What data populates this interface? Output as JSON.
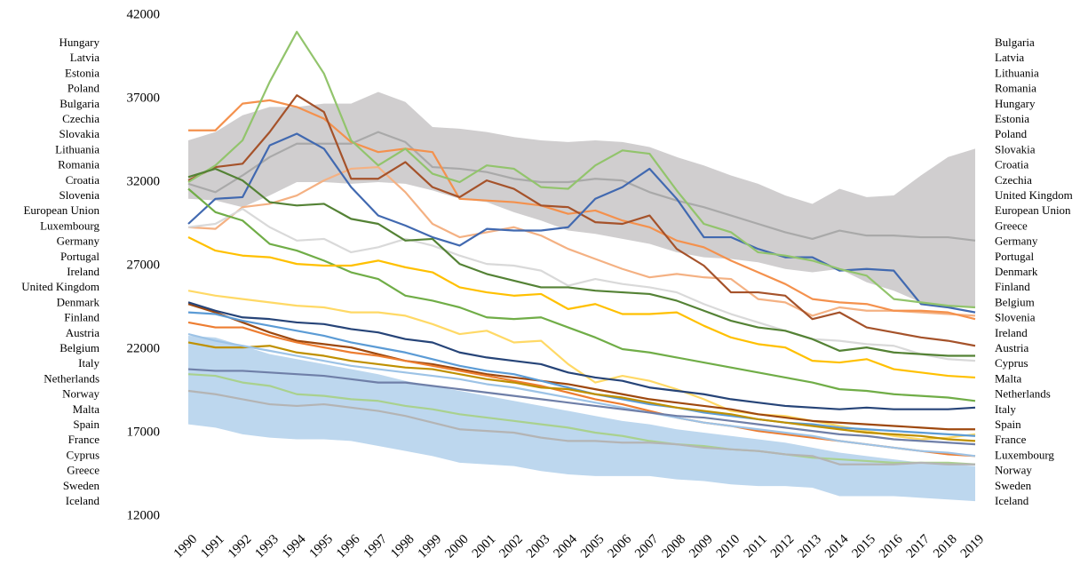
{
  "chart_data": {
    "type": "line",
    "categories": [
      "1990",
      "1991",
      "1992",
      "1993",
      "1994",
      "1995",
      "1996",
      "1997",
      "1998",
      "1999",
      "2000",
      "2001",
      "2002",
      "2003",
      "2004",
      "2005",
      "2006",
      "2007",
      "2008",
      "2009",
      "2010",
      "2011",
      "2012",
      "2013",
      "2014",
      "2015",
      "2016",
      "2017",
      "2018",
      "2019"
    ],
    "ylim": [
      12000,
      42000
    ],
    "yticks": [
      12000,
      17000,
      22000,
      27000,
      32000,
      37000,
      42000
    ],
    "grid": false,
    "left_labels": [
      "Hungary",
      "Latvia",
      "Estonia",
      "Poland",
      "Bulgaria",
      "Czechia",
      "Slovakia",
      "Lithuania",
      "Romania",
      "Croatia",
      "Slovenia",
      "European Union",
      "Luxembourg",
      "Germany",
      "Portugal",
      "Ireland",
      "United Kingdom",
      "Denmark",
      "Finland",
      "Austria",
      "Belgium",
      "Italy",
      "Netherlands",
      "Norway",
      "Malta",
      "Spain",
      "France",
      "Cyprus",
      "Greece",
      "Sweden",
      "Iceland"
    ],
    "right_labels": [
      "Bulgaria",
      "Latvia",
      "Lithuania",
      "Romania",
      "Hungary",
      "Estonia",
      "Poland",
      "Slovakia",
      "Croatia",
      "Czechia",
      "United Kingdom",
      "European Union",
      "Greece",
      "Germany",
      "Portugal",
      "Denmark",
      "Finland",
      "Belgium",
      "Slovenia",
      "Ireland",
      "Austria",
      "Cyprus",
      "Malta",
      "Netherlands",
      "Italy",
      "Spain",
      "France",
      "Luxembourg",
      "Norway",
      "Sweden",
      "Iceland"
    ],
    "bands": [
      {
        "color": "#d0cecf",
        "upper": [
          34500,
          35000,
          36000,
          36500,
          36500,
          36700,
          36700,
          37400,
          36800,
          35300,
          35200,
          35000,
          34700,
          34500,
          34400,
          34500,
          34400,
          34100,
          33500,
          33000,
          32400,
          31900,
          31200,
          30700,
          31600,
          31100,
          31200,
          32400,
          33500,
          34000
        ],
        "lower": [
          31000,
          30900,
          30500,
          31200,
          32000,
          32000,
          31900,
          32000,
          31900,
          31500,
          31000,
          30800,
          30200,
          29700,
          29100,
          28900,
          28600,
          28300,
          27800,
          27500,
          27400,
          27200,
          26800,
          26600,
          26800,
          26000,
          25500,
          24800,
          24500,
          24500
        ]
      },
      {
        "color": "#bdd7ee",
        "upper": [
          22800,
          22700,
          22200,
          21700,
          21400,
          21100,
          20800,
          20500,
          20100,
          19800,
          19500,
          19200,
          18900,
          18600,
          18300,
          18000,
          17700,
          17500,
          17200,
          17000,
          16800,
          16600,
          16400,
          16100,
          15800,
          15600,
          15400,
          15200,
          15100,
          15000
        ],
        "lower": [
          17500,
          17300,
          16900,
          16700,
          16600,
          16600,
          16500,
          16200,
          15900,
          15600,
          15200,
          15100,
          15000,
          14700,
          14500,
          14400,
          14400,
          14400,
          14200,
          14100,
          13900,
          13800,
          13800,
          13700,
          13200,
          13200,
          13200,
          13100,
          13000,
          12900
        ]
      }
    ],
    "series": [
      {
        "color": "#a9a9a9",
        "values": [
          31900,
          31400,
          32400,
          33500,
          34300,
          34300,
          34300,
          35000,
          34400,
          32900,
          32800,
          32600,
          32200,
          32000,
          32000,
          32200,
          32100,
          31400,
          30900,
          30500,
          30000,
          29500,
          29000,
          28600,
          29100,
          28800,
          28800,
          28700,
          28700,
          28500
        ]
      },
      {
        "color": "#f4b183",
        "values": [
          29300,
          29200,
          30500,
          30700,
          31200,
          32100,
          32800,
          32900,
          31400,
          29500,
          28700,
          29000,
          29300,
          28800,
          28000,
          27400,
          26800,
          26300,
          26500,
          26300,
          26200,
          25000,
          24800,
          24000,
          24500,
          24300,
          24300,
          24200,
          24100,
          24000
        ]
      },
      {
        "color": "#d9d9d9",
        "values": [
          29300,
          29500,
          30400,
          29300,
          28500,
          28600,
          27800,
          28100,
          28600,
          28200,
          27600,
          27100,
          27000,
          26700,
          25800,
          26200,
          25900,
          25700,
          25400,
          24700,
          24100,
          23600,
          23100,
          22600,
          22500,
          22300,
          22200,
          21700,
          21400,
          21300
        ]
      },
      {
        "color": "#f4914d",
        "values": [
          35100,
          35100,
          36700,
          36900,
          36500,
          35800,
          34400,
          33800,
          34000,
          33800,
          31000,
          30900,
          30800,
          30600,
          30100,
          30300,
          29700,
          29300,
          28500,
          28100,
          27300,
          26600,
          25900,
          25000,
          24800,
          24700,
          24300,
          24300,
          24200,
          23800
        ]
      },
      {
        "color": "#a5522a",
        "values": [
          32100,
          32900,
          33100,
          35000,
          37200,
          36200,
          32200,
          32200,
          33200,
          31700,
          31100,
          32100,
          31600,
          30600,
          30500,
          29600,
          29500,
          30000,
          28000,
          27000,
          25400,
          25400,
          25200,
          23800,
          24200,
          23300,
          23000,
          22700,
          22500,
          22200
        ]
      },
      {
        "color": "#4169b0",
        "values": [
          29500,
          31000,
          31100,
          34200,
          34900,
          34000,
          31700,
          30000,
          29400,
          28700,
          28200,
          29200,
          29100,
          29100,
          29300,
          31000,
          31700,
          32800,
          31000,
          28700,
          28700,
          28000,
          27500,
          27500,
          26700,
          26800,
          26700,
          24700,
          24500,
          24200
        ]
      },
      {
        "color": "#92c46c",
        "values": [
          32000,
          33000,
          34500,
          38000,
          41000,
          38500,
          34500,
          33000,
          34000,
          32500,
          32000,
          33000,
          32800,
          31700,
          31600,
          33000,
          33900,
          33700,
          31500,
          29500,
          29000,
          27800,
          27600,
          27300,
          26800,
          26400,
          25000,
          24800,
          24600,
          24500
        ]
      },
      {
        "color": "#548235",
        "values": [
          32300,
          32800,
          32100,
          30800,
          30600,
          30700,
          29800,
          29500,
          28500,
          28600,
          27100,
          26500,
          26100,
          25700,
          25700,
          25500,
          25400,
          25300,
          24900,
          24300,
          23700,
          23300,
          23100,
          22600,
          21900,
          22100,
          21800,
          21700,
          21600,
          21600
        ]
      },
      {
        "color": "#70ad47",
        "values": [
          31600,
          30200,
          29700,
          28300,
          27900,
          27300,
          26600,
          26200,
          25200,
          24900,
          24500,
          23900,
          23800,
          23900,
          23300,
          22700,
          22000,
          21800,
          21500,
          21200,
          20900,
          20600,
          20300,
          20000,
          19600,
          19500,
          19300,
          19200,
          19100,
          18900
        ]
      },
      {
        "color": "#ffc000",
        "values": [
          28700,
          27900,
          27600,
          27500,
          27100,
          27000,
          27000,
          27300,
          26900,
          26600,
          25700,
          25400,
          25200,
          25300,
          24400,
          24700,
          24100,
          24100,
          24200,
          23400,
          22700,
          22300,
          22100,
          21300,
          21200,
          21400,
          20800,
          20600,
          20400,
          20300
        ]
      },
      {
        "color": "#ffd966",
        "values": [
          25500,
          25200,
          25000,
          24800,
          24600,
          24500,
          24200,
          24200,
          24000,
          23500,
          22900,
          23100,
          22400,
          22500,
          21100,
          20000,
          20400,
          20100,
          19600,
          19000,
          18300,
          18100,
          18000,
          17700,
          17400,
          17100,
          16800,
          16600,
          16700,
          16900
        ]
      },
      {
        "color": "#9e480e",
        "values": [
          24700,
          24200,
          23600,
          23000,
          22500,
          22300,
          22100,
          21700,
          21300,
          21100,
          20800,
          20500,
          20300,
          20100,
          19900,
          19600,
          19300,
          19000,
          18800,
          18600,
          18400,
          18100,
          17900,
          17700,
          17600,
          17500,
          17400,
          17300,
          17200,
          17200
        ]
      },
      {
        "color": "#264478",
        "values": [
          24800,
          24300,
          23900,
          23800,
          23600,
          23500,
          23200,
          23000,
          22600,
          22400,
          21800,
          21500,
          21300,
          21100,
          20600,
          20300,
          20100,
          19700,
          19500,
          19300,
          19000,
          18800,
          18600,
          18500,
          18400,
          18500,
          18400,
          18400,
          18400,
          18500
        ]
      },
      {
        "color": "#5b9bd5",
        "values": [
          24200,
          24100,
          23700,
          23400,
          23100,
          22800,
          22400,
          22100,
          21800,
          21400,
          21000,
          20700,
          20500,
          20100,
          19700,
          19300,
          19000,
          18700,
          18500,
          18200,
          18000,
          17800,
          17600,
          17500,
          17300,
          17200,
          17100,
          17000,
          16900,
          16800
        ]
      },
      {
        "color": "#ed7d31",
        "values": [
          23600,
          23300,
          23300,
          22800,
          22400,
          22100,
          21800,
          21600,
          21300,
          21000,
          20700,
          20400,
          20100,
          19800,
          19400,
          19000,
          18700,
          18300,
          17900,
          17600,
          17400,
          17100,
          16900,
          16700,
          16500,
          16300,
          16100,
          15900,
          15700,
          15600
        ]
      },
      {
        "color": "#bf9000",
        "values": [
          22400,
          22100,
          22100,
          22200,
          21800,
          21600,
          21300,
          21100,
          20900,
          20800,
          20500,
          20200,
          20000,
          19700,
          19600,
          19300,
          19100,
          18800,
          18500,
          18300,
          18100,
          17800,
          17600,
          17400,
          17200,
          17000,
          16900,
          16800,
          16600,
          16500
        ]
      },
      {
        "color": "#9dc3e6",
        "values": [
          22900,
          22500,
          22200,
          21900,
          21600,
          21300,
          21000,
          20800,
          20600,
          20400,
          20200,
          19900,
          19700,
          19400,
          19100,
          18800,
          18500,
          18200,
          17900,
          17600,
          17400,
          17200,
          17000,
          16800,
          16500,
          16300,
          16100,
          15900,
          15800,
          15600
        ]
      },
      {
        "color": "#6f7fa8",
        "values": [
          20800,
          20700,
          20700,
          20600,
          20500,
          20400,
          20200,
          20000,
          20000,
          19800,
          19600,
          19400,
          19200,
          19000,
          18800,
          18600,
          18400,
          18200,
          18000,
          17900,
          17700,
          17500,
          17300,
          17100,
          16900,
          16800,
          16600,
          16500,
          16400,
          16300
        ]
      },
      {
        "color": "#a9d18e",
        "values": [
          20500,
          20400,
          20000,
          19800,
          19300,
          19200,
          19000,
          18900,
          18600,
          18400,
          18100,
          17900,
          17700,
          17500,
          17300,
          17000,
          16800,
          16500,
          16300,
          16200,
          16000,
          15900,
          15700,
          15500,
          15400,
          15300,
          15200,
          15200,
          15200,
          15100
        ]
      },
      {
        "color": "#b4b4b4",
        "values": [
          19500,
          19300,
          19000,
          18700,
          18600,
          18700,
          18500,
          18300,
          18000,
          17600,
          17200,
          17100,
          17000,
          16700,
          16500,
          16500,
          16400,
          16400,
          16300,
          16100,
          16000,
          15900,
          15700,
          15600,
          15100,
          15100,
          15100,
          15200,
          15100,
          15100
        ]
      }
    ]
  }
}
